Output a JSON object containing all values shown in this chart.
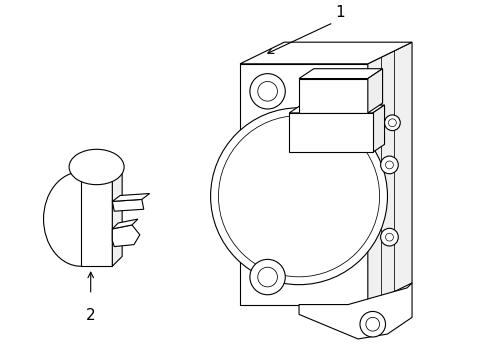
{
  "background_color": "#ffffff",
  "line_color": "#000000",
  "line_width": 0.8,
  "label1": "1",
  "label2": "2",
  "figsize": [
    4.89,
    3.6
  ],
  "dpi": 100
}
